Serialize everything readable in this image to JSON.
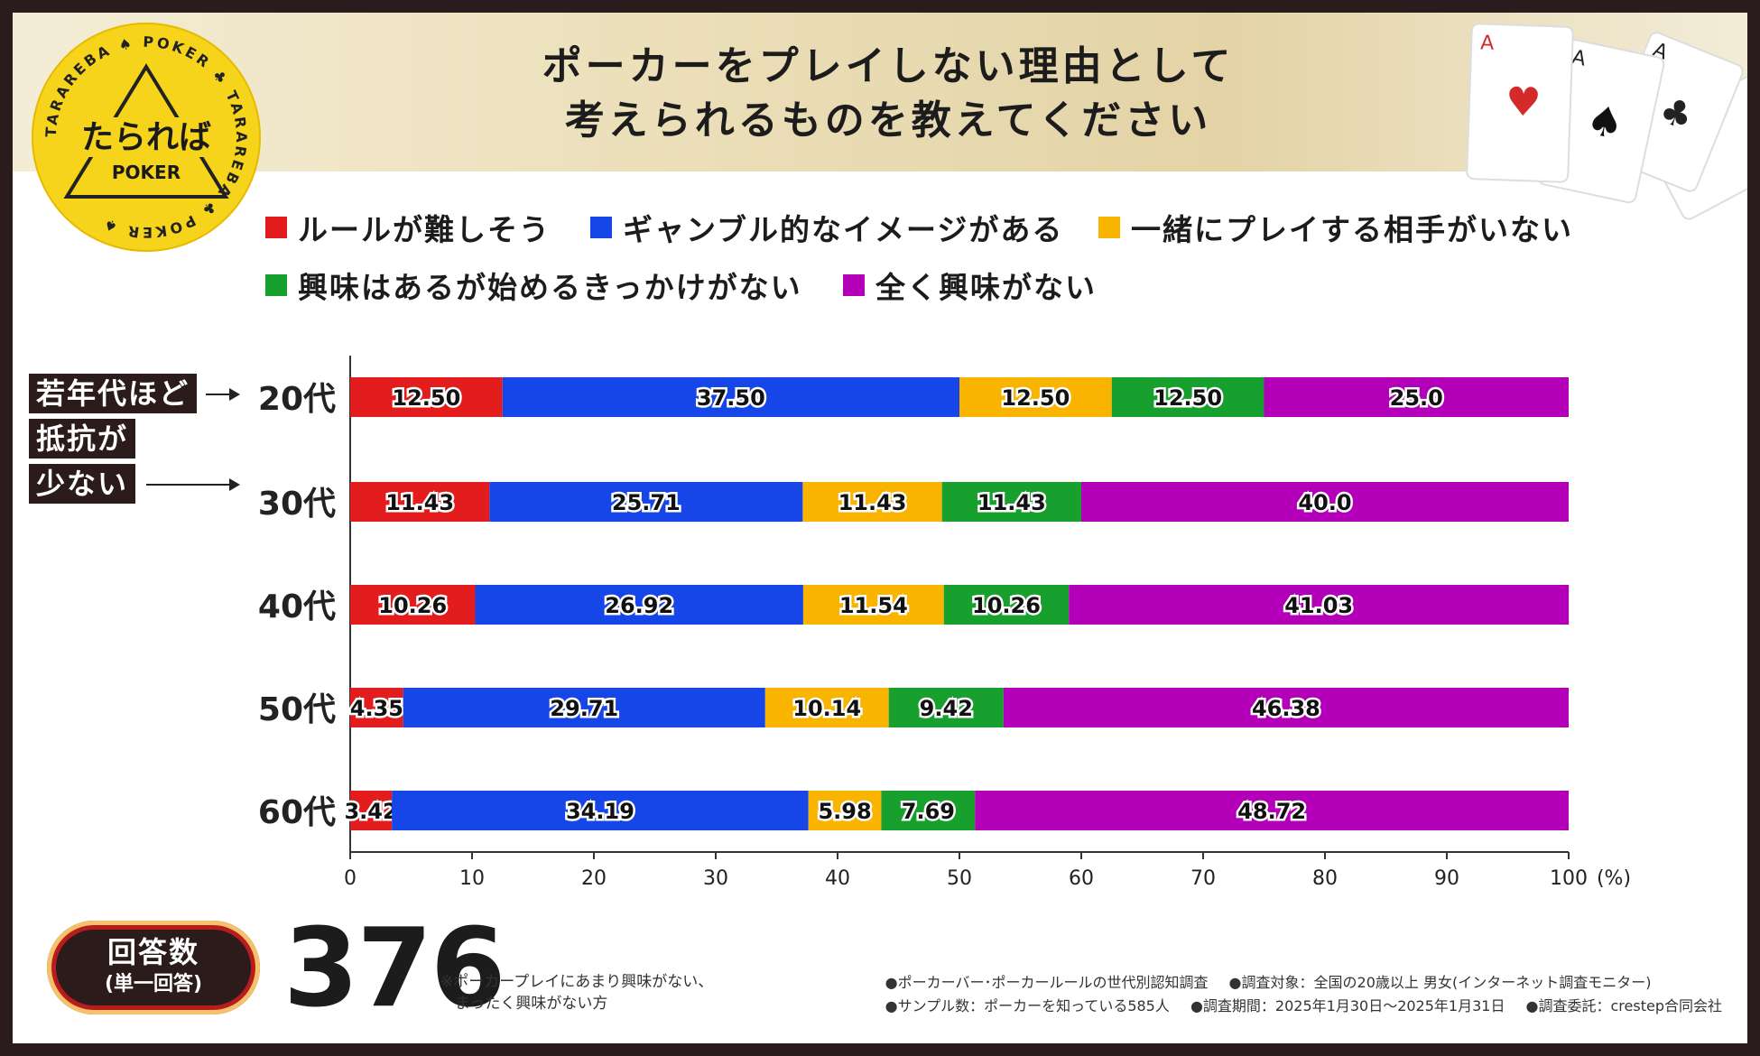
{
  "logo": {
    "brand": "たられば",
    "product": "POKER",
    "ring_text": "TARAREBA ♠ POKER ♣ TARAREBA ♣ POKER ♠"
  },
  "title": {
    "line1": "ポーカーをプレイしない理由として",
    "line2": "考えられるものを教えてください"
  },
  "legend": [
    {
      "label": "ルールが難しそう",
      "color": "#e31d1d"
    },
    {
      "label": "ギャンブル的なイメージがある",
      "color": "#1746e8"
    },
    {
      "label": "一緒にプレイする相手がいない",
      "color": "#f9b400"
    },
    {
      "label": "興味はあるが始めるきっかけがない",
      "color": "#17a02e"
    },
    {
      "label": "全く興味がない",
      "color": "#b300b8"
    }
  ],
  "annotation": {
    "line1": "若年代ほど",
    "line2": "抵抗が",
    "line3": "少ない"
  },
  "chart_data": {
    "type": "bar",
    "orientation": "horizontal",
    "stacked": true,
    "categories": [
      "20代",
      "30代",
      "40代",
      "50代",
      "60代"
    ],
    "series": [
      {
        "name": "ルールが難しそう",
        "color": "#e31d1d",
        "values": [
          12.5,
          11.43,
          10.26,
          4.35,
          3.42
        ],
        "labels": [
          "12.50",
          "11.43",
          "10.26",
          "4.35",
          "3.42"
        ]
      },
      {
        "name": "ギャンブル的なイメージがある",
        "color": "#1746e8",
        "values": [
          37.5,
          25.71,
          26.92,
          29.71,
          34.19
        ],
        "labels": [
          "37.50",
          "25.71",
          "26.92",
          "29.71",
          "34.19"
        ]
      },
      {
        "name": "一緒にプレイする相手がいない",
        "color": "#f9b400",
        "values": [
          12.5,
          11.43,
          11.54,
          10.14,
          5.98
        ],
        "labels": [
          "12.50",
          "11.43",
          "11.54",
          "10.14",
          "5.98"
        ]
      },
      {
        "name": "興味はあるが始めるきっかけがない",
        "color": "#17a02e",
        "values": [
          12.5,
          11.43,
          10.26,
          9.42,
          7.69
        ],
        "labels": [
          "12.50",
          "11.43",
          "10.26",
          "9.42",
          "7.69"
        ]
      },
      {
        "name": "全く興味がない",
        "color": "#b300b8",
        "values": [
          25.0,
          40.0,
          41.03,
          46.38,
          48.72
        ],
        "labels": [
          "25.0",
          "40.0",
          "41.03",
          "46.38",
          "48.72"
        ]
      }
    ],
    "xlim": [
      0,
      100
    ],
    "xticks": [
      "0",
      "10",
      "20",
      "30",
      "40",
      "50",
      "60",
      "70",
      "80",
      "90",
      "100"
    ],
    "unit": "(%)",
    "grid": false,
    "legend_position": "top"
  },
  "responses": {
    "label": "回答数",
    "sublabel": "(単一回答)",
    "count": "376"
  },
  "note": {
    "line1": "※ポーカープレイにあまり興味がない、",
    "line2": "まったく興味がない方"
  },
  "meta": {
    "survey_name": "●ポーカーバー･ポーカールールの世代別認知調査",
    "target": "●調査対象：全国の20歳以上 男女(インターネット調査モニター)",
    "sample": "●サンプル数：ポーカーを知っている585人",
    "period": "●調査期間：2025年1月30日～2025年1月31日",
    "commissioned": "●調査委託：crestep合同会社"
  }
}
